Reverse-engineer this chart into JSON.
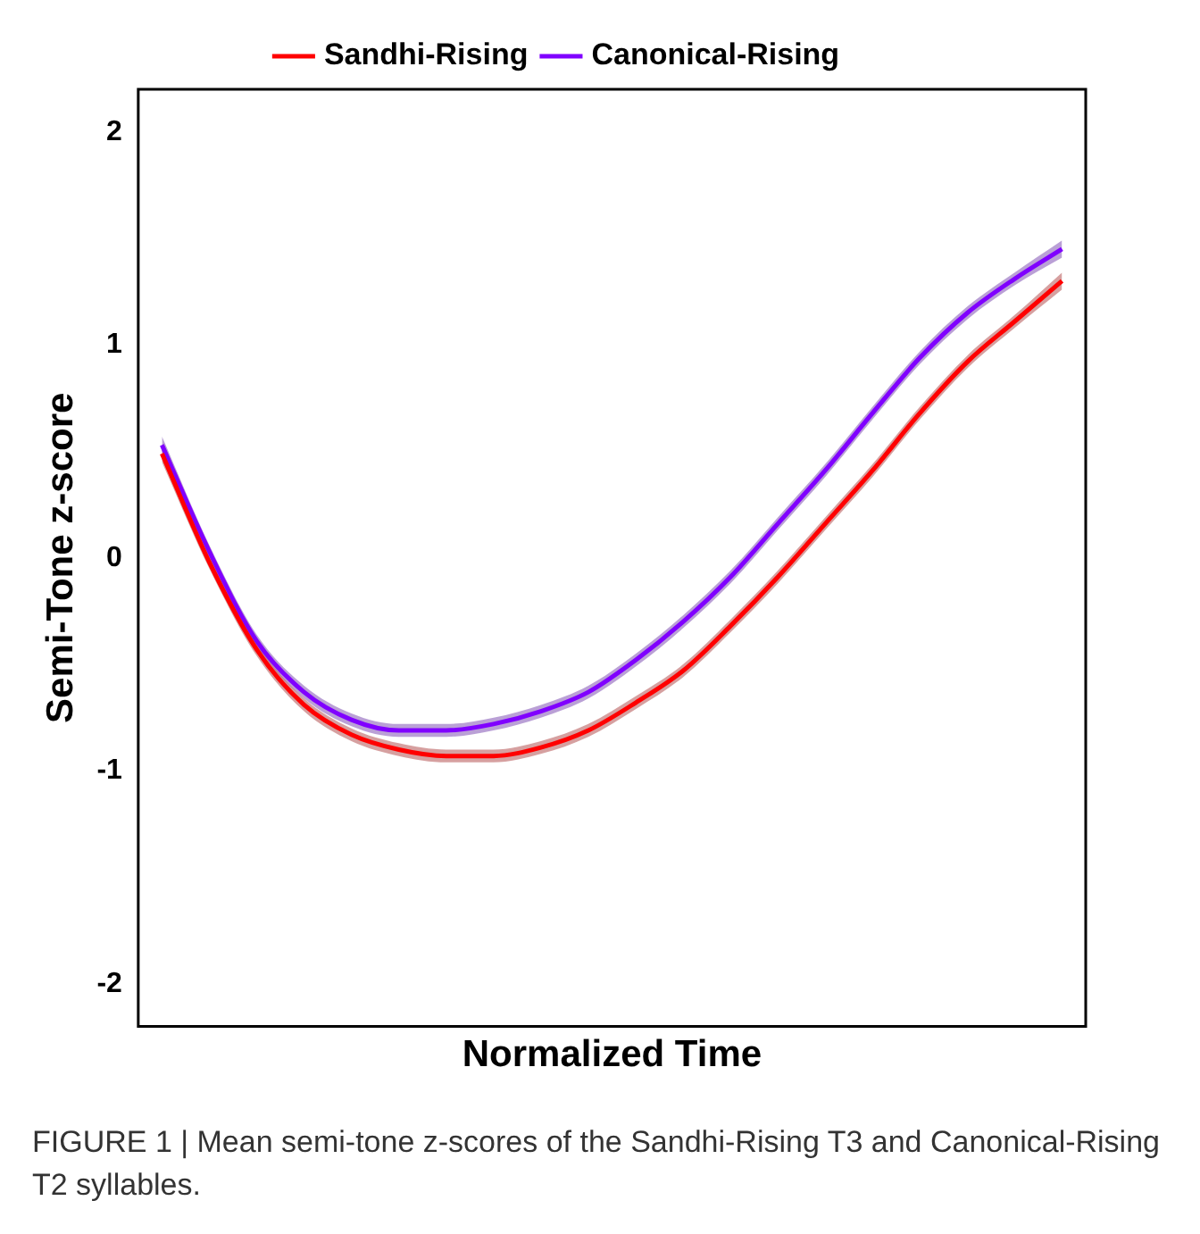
{
  "chart_data": {
    "type": "line",
    "xlabel": "Normalized Time",
    "ylabel": "Semi-Tone z-score",
    "categories": [
      null,
      null,
      null,
      null,
      null,
      null,
      null,
      null,
      null,
      null,
      null,
      null,
      null,
      null,
      null,
      null,
      null,
      null,
      null,
      null
    ],
    "series": [
      {
        "name": "Sandhi-Rising",
        "color": "#ff0000",
        "values": [
          0.49,
          -0.02,
          -0.43,
          -0.69,
          -0.83,
          -0.9,
          -0.93,
          -0.93,
          -0.89,
          -0.81,
          -0.68,
          -0.53,
          -0.32,
          -0.09,
          0.16,
          0.41,
          0.68,
          0.92,
          1.11,
          1.3
        ],
        "lower": [
          0.45,
          -0.05,
          -0.46,
          -0.72,
          -0.86,
          -0.93,
          -0.96,
          -0.96,
          -0.92,
          -0.84,
          -0.71,
          -0.56,
          -0.35,
          -0.12,
          0.13,
          0.38,
          0.65,
          0.89,
          1.08,
          1.26
        ],
        "upper": [
          0.53,
          0.01,
          -0.4,
          -0.66,
          -0.8,
          -0.87,
          -0.9,
          -0.9,
          -0.86,
          -0.78,
          -0.65,
          -0.5,
          -0.29,
          -0.06,
          0.19,
          0.44,
          0.71,
          0.95,
          1.14,
          1.34
        ]
      },
      {
        "name": "Canonical-Rising",
        "color": "#8000ff",
        "values": [
          0.53,
          0.03,
          -0.39,
          -0.63,
          -0.76,
          -0.81,
          -0.81,
          -0.78,
          -0.72,
          -0.63,
          -0.48,
          -0.3,
          -0.09,
          0.16,
          0.41,
          0.68,
          0.94,
          1.15,
          1.31,
          1.45
        ],
        "lower": [
          0.49,
          0,
          -0.42,
          -0.66,
          -0.79,
          -0.84,
          -0.84,
          -0.81,
          -0.75,
          -0.66,
          -0.51,
          -0.33,
          -0.12,
          0.13,
          0.38,
          0.65,
          0.91,
          1.12,
          1.28,
          1.41
        ],
        "upper": [
          0.57,
          0.06,
          -0.36,
          -0.6,
          -0.73,
          -0.78,
          -0.78,
          -0.75,
          -0.69,
          -0.6,
          -0.45,
          -0.27,
          -0.06,
          0.19,
          0.44,
          0.71,
          0.97,
          1.18,
          1.34,
          1.49
        ]
      }
    ],
    "ylim": [
      -2.2,
      2.2
    ],
    "yticks": [
      -2,
      -1,
      0,
      1,
      2
    ],
    "grid": false,
    "legend": "top",
    "marker": "none",
    "line_style": "solid",
    "tick_labels": "y",
    "annotations": [
      "FIGURE 1 | Mean semi-tone z-scores of the Sandhi-Rising T3 and Canonical-Rising T2 syllables."
    ]
  }
}
